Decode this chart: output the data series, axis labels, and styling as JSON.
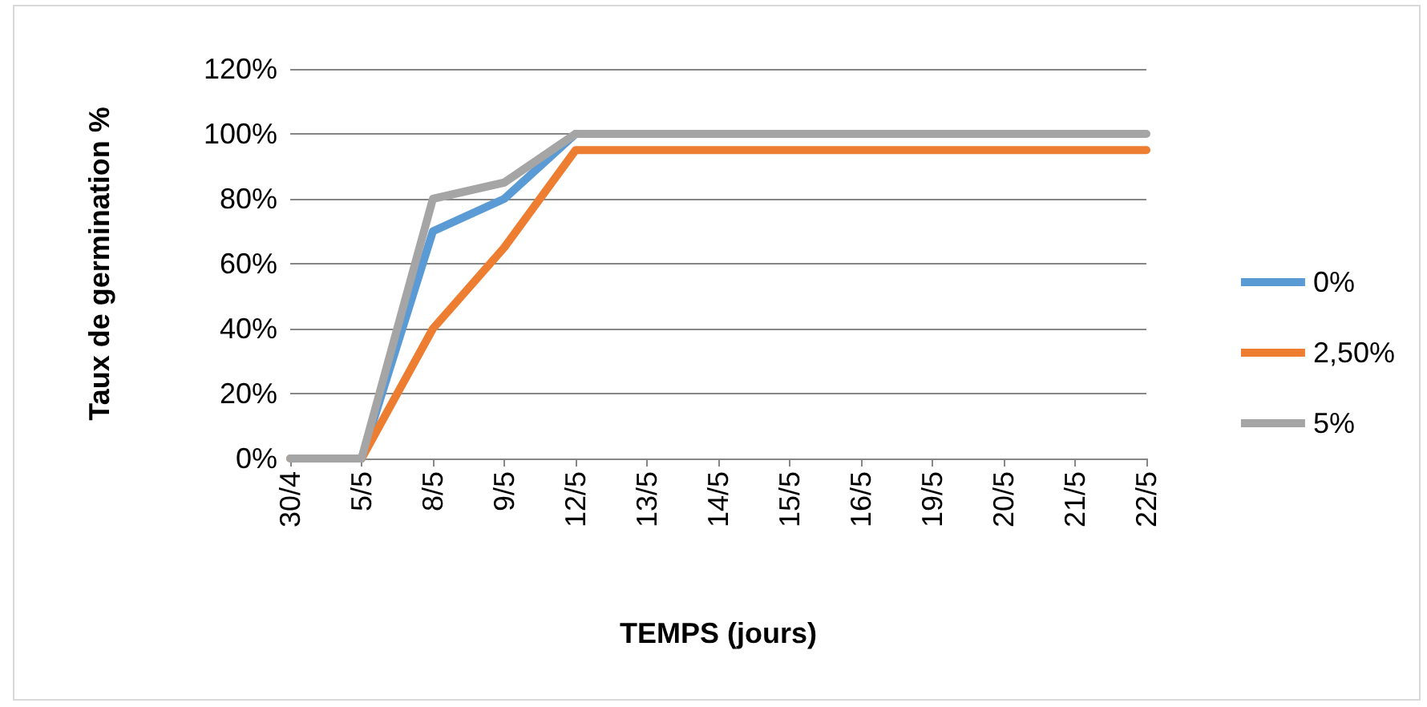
{
  "chart_data": {
    "type": "line",
    "xlabel": "TEMPS (jours)",
    "ylabel": "Taux de germination %",
    "categories": [
      "30/4",
      "5/5",
      "8/5",
      "9/5",
      "12/5",
      "13/5",
      "14/5",
      "15/5",
      "16/5",
      "19/5",
      "20/5",
      "21/5",
      "22/5"
    ],
    "series": [
      {
        "name": "0%",
        "color": "#5b9bd5",
        "values": [
          null,
          0,
          70,
          80,
          100,
          null,
          null,
          null,
          null,
          null,
          null,
          null,
          null
        ]
      },
      {
        "name": "2,50%",
        "color": "#ed7d31",
        "values": [
          0,
          0,
          40,
          65,
          95,
          95,
          95,
          95,
          95,
          95,
          95,
          95,
          95
        ]
      },
      {
        "name": "5%",
        "color": "#a5a5a5",
        "values": [
          0,
          0,
          80,
          85,
          100,
          100,
          100,
          100,
          100,
          100,
          100,
          100,
          100
        ]
      }
    ],
    "ylim": [
      0,
      120
    ],
    "yticks": [
      {
        "value": 0,
        "label": "0%"
      },
      {
        "value": 20,
        "label": "20%"
      },
      {
        "value": 40,
        "label": "40%"
      },
      {
        "value": 60,
        "label": "60%"
      },
      {
        "value": 80,
        "label": "80%"
      },
      {
        "value": 100,
        "label": "100%"
      },
      {
        "value": 120,
        "label": "120%"
      }
    ],
    "grid": "y",
    "legend": "right",
    "marker": "none",
    "line_style": "solid"
  }
}
